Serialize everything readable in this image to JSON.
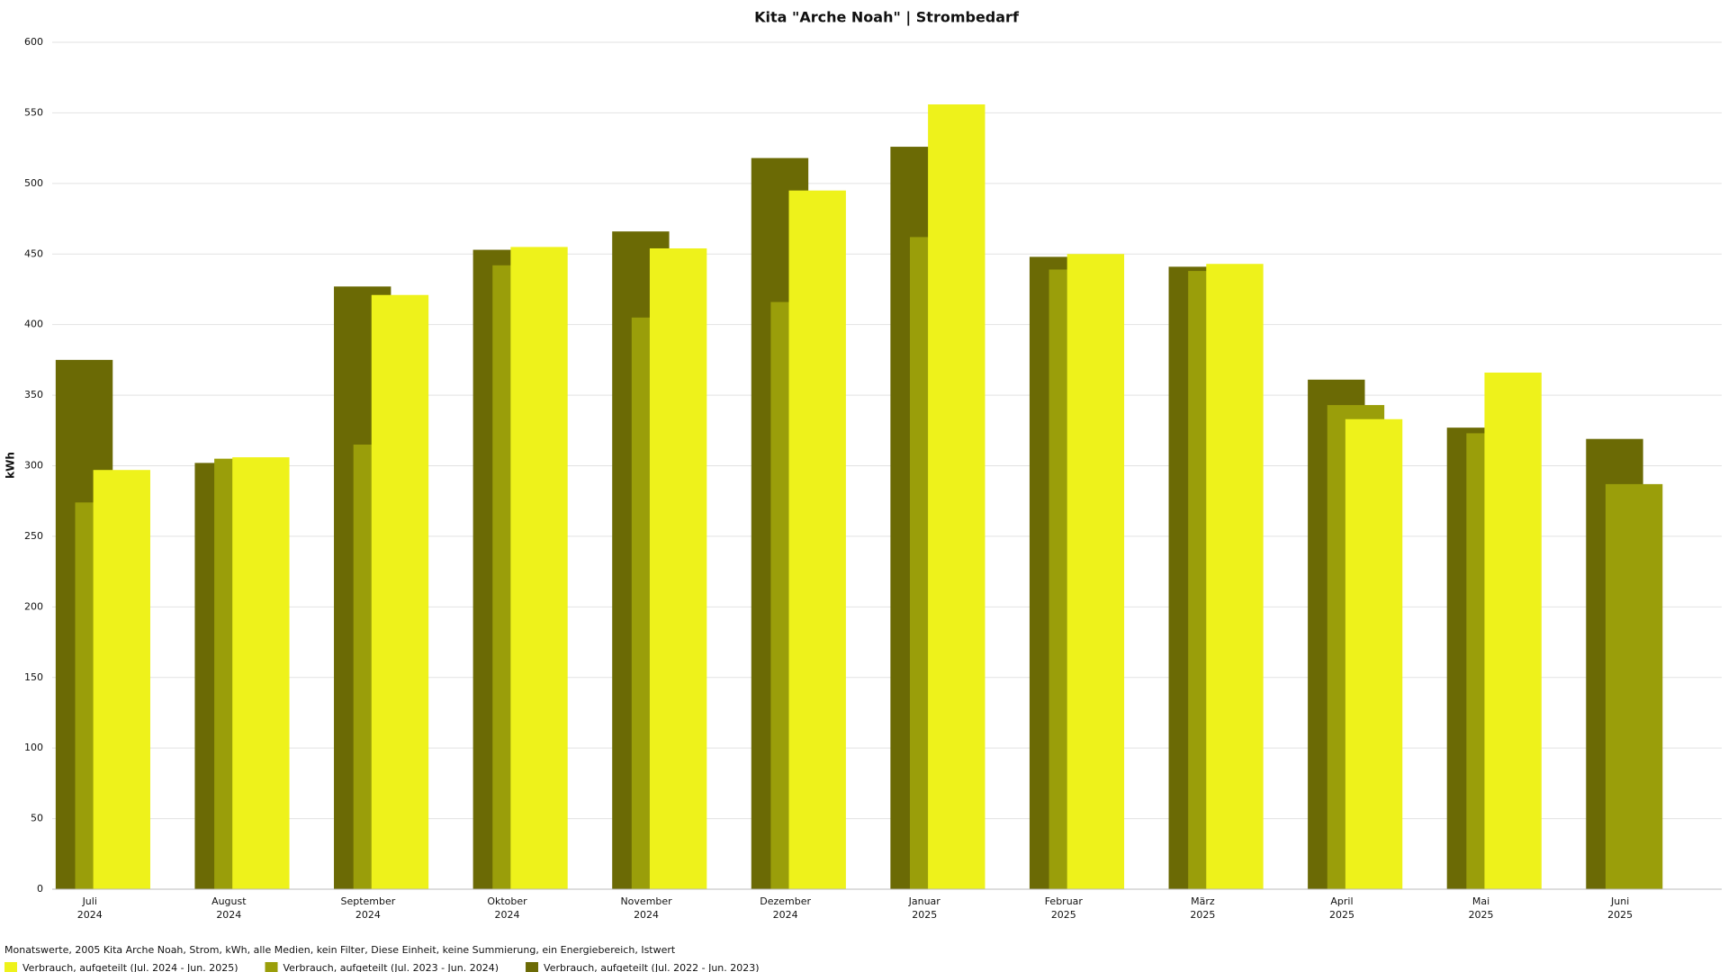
{
  "chart_data": {
    "type": "bar",
    "title": "Kita \"Arche Noah\" | Strombedarf",
    "y_label": "kWh",
    "categories": [
      [
        "Juli",
        "2024"
      ],
      [
        "August",
        "2024"
      ],
      [
        "September",
        "2024"
      ],
      [
        "Oktober",
        "2024"
      ],
      [
        "November",
        "2024"
      ],
      [
        "Dezember",
        "2024"
      ],
      [
        "Januar",
        "2025"
      ],
      [
        "Februar",
        "2025"
      ],
      [
        "März",
        "2025"
      ],
      [
        "April",
        "2025"
      ],
      [
        "Mai",
        "2025"
      ],
      [
        "Juni",
        "2025"
      ]
    ],
    "series": [
      {
        "name": "Verbrauch, aufgeteilt (Jul. 2024 - Jun. 2025)",
        "color": "#eef21b",
        "values": [
          297,
          306,
          421,
          455,
          454,
          495,
          556,
          450,
          443,
          333,
          366,
          null
        ]
      },
      {
        "name": "Verbrauch, aufgeteilt (Jul. 2023 - Jun. 2024)",
        "color": "#9a9e0a",
        "values": [
          274,
          305,
          315,
          442,
          405,
          416,
          462,
          439,
          438,
          343,
          323,
          287
        ]
      },
      {
        "name": "Verbrauch, aufgeteilt (Jul. 2022 - Jun. 2023)",
        "color": "#6b6a05",
        "values": [
          375,
          302,
          427,
          453,
          466,
          518,
          526,
          448,
          441,
          361,
          327,
          319
        ]
      }
    ],
    "ylim": [
      0,
      600
    ],
    "yticks": [
      0,
      50,
      100,
      150,
      200,
      250,
      300,
      350,
      400,
      450,
      500,
      550,
      600
    ],
    "grid": true,
    "footnote": "Monatswerte, 2005 Kita Arche Noah, Strom, kWh, alle Medien, kein Filter, Diese Einheit, keine Summierung, ein Energiebereich, Istwert"
  }
}
